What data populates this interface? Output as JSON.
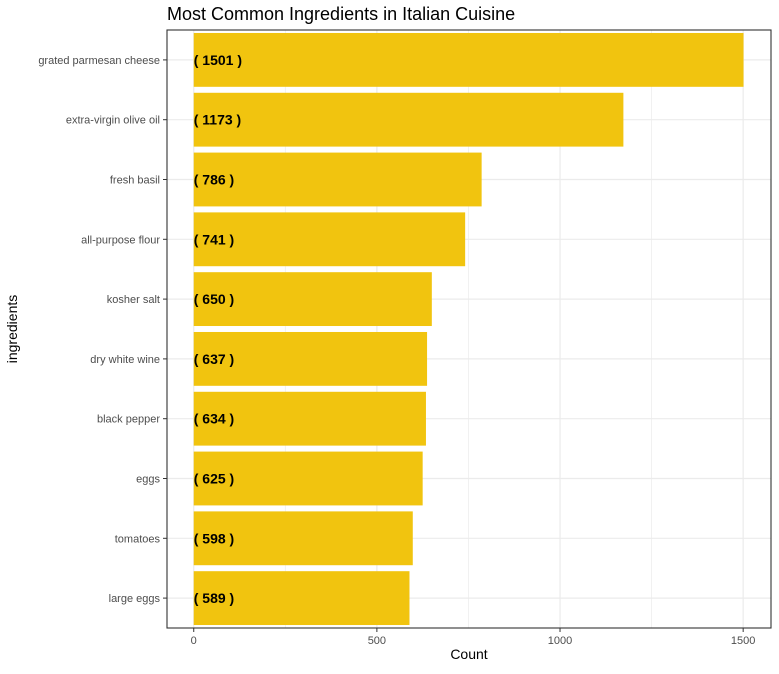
{
  "chart_data": {
    "type": "bar",
    "orientation": "horizontal",
    "title": "Most Common Ingredients in Italian Cuisine",
    "xlabel": "Count",
    "ylabel": "ingredients",
    "categories": [
      "grated parmesan cheese",
      "extra-virgin olive oil",
      "fresh basil",
      "all-purpose flour",
      "kosher salt",
      "dry white wine",
      "black pepper",
      "eggs",
      "tomatoes",
      "large eggs"
    ],
    "values": [
      1501,
      1173,
      786,
      741,
      650,
      637,
      634,
      625,
      598,
      589
    ],
    "data_labels": [
      "( 1501 )",
      "( 1173 )",
      "( 786 )",
      "( 741 )",
      "( 650 )",
      "( 637 )",
      "( 634 )",
      "( 625 )",
      "( 598 )",
      "( 589 )"
    ],
    "xlim": [
      -73,
      1576
    ],
    "xticks": [
      0,
      500,
      1000,
      1500
    ],
    "xtick_labels": [
      "0",
      "500",
      "1000",
      "1500"
    ],
    "grid": true,
    "legend": "none",
    "colors": {
      "bar": "#f1c40f",
      "grid": "#ebebeb",
      "border": "#333333",
      "tick_text": "#4d4d4d",
      "label_text": "#000000"
    }
  }
}
